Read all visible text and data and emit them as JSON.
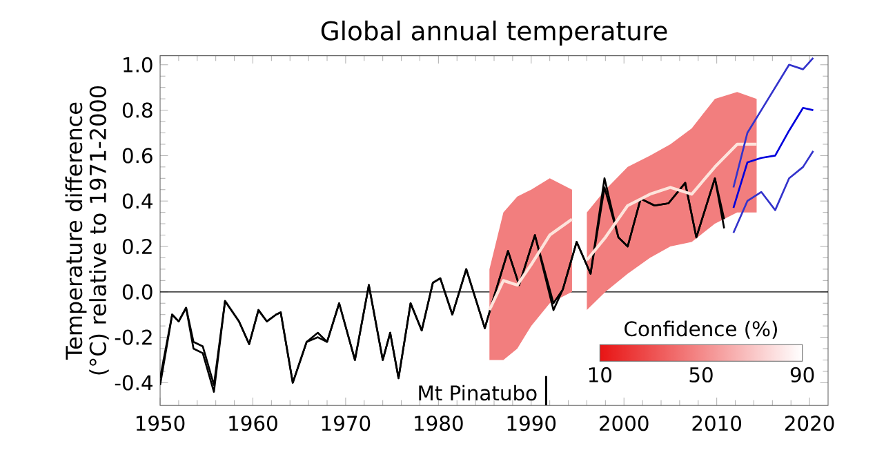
{
  "chart_data": {
    "type": "line",
    "title": "Global annual temperature",
    "ylabel": "Temperature difference (°C) relative to 1971-2000",
    "annotations": [
      "Confidence (%)",
      "10",
      "50",
      "90"
    ],
    "xlim": [
      1950,
      2022
    ],
    "xticks": [
      1950,
      1960,
      1970,
      1980,
      1990,
      2000,
      2010,
      2020
    ],
    "ylim": [
      -0.5,
      1.04
    ],
    "yticks": [
      {
        "value": -0.4,
        "label": "-0.4"
      },
      {
        "value": -0.2,
        "label": "-0.2"
      },
      {
        "value": 0,
        "label": "0.0"
      },
      {
        "value": 0.2,
        "label": "0.2"
      },
      {
        "value": 0.4,
        "label": "0.4"
      },
      {
        "value": 0.6,
        "label": "0.6"
      },
      {
        "value": 0.8,
        "label": "0.8"
      },
      {
        "value": 1.0,
        "label": "1.0"
      }
    ],
    "grid": false,
    "ref_lines": [
      {
        "axis": "y",
        "value": 0,
        "color": "#000000"
      },
      {
        "axis": "x",
        "value": 1991.6,
        "label": "Mt Pinatubo",
        "color": "#000000"
      }
    ],
    "series": [
      {
        "color": "#000000",
        "x": [
          1950,
          1951.3,
          1952,
          1952.8,
          1953.6,
          1954.6,
          1955.8,
          1957,
          1958.5,
          1959.6,
          1960.6,
          1961.5,
          1962.5,
          1963,
          1964.3,
          1965.8,
          1967,
          1968,
          1969.3,
          1971,
          1972.5,
          1974,
          1974.8,
          1975.7,
          1977,
          1978.2,
          1979.4,
          1980.2,
          1981.5,
          1983,
          1985,
          1986,
          1987.5,
          1988.7,
          1990.4,
          1992.4,
          1993.4,
          1994.9,
          1996.4,
          1997.9,
          1999.4,
          2000.4,
          2001.8,
          2003.3,
          2004.8,
          2006.6,
          2007.8,
          2009.8,
          2010.8
        ],
        "values": [
          -0.41,
          -0.1,
          -0.13,
          -0.07,
          -0.25,
          -0.27,
          -0.44,
          -0.04,
          -0.13,
          -0.23,
          -0.08,
          -0.13,
          -0.1,
          -0.09,
          -0.4,
          -0.22,
          -0.2,
          -0.22,
          -0.05,
          -0.3,
          0.03,
          -0.3,
          -0.18,
          -0.38,
          -0.05,
          -0.17,
          0.04,
          0.06,
          -0.1,
          0.1,
          -0.16,
          -0.02,
          0.18,
          0.03,
          0.25,
          -0.05,
          0.01,
          0.22,
          0.08,
          0.5,
          0.24,
          0.2,
          0.41,
          0.38,
          0.39,
          0.48,
          0.24,
          0.5,
          0.32
        ]
      },
      {
        "color": "#000000",
        "x": [
          1950,
          1951.3,
          1952,
          1952.8,
          1953.6,
          1954.6,
          1955.8,
          1957,
          1958.5,
          1959.6,
          1960.6,
          1961.5,
          1962.5,
          1963,
          1964.3,
          1965.8,
          1967,
          1968,
          1969.3,
          1971,
          1972.5,
          1974,
          1974.8,
          1975.7,
          1977,
          1978.2,
          1979.4,
          1980.2,
          1981.5,
          1983,
          1985,
          1986,
          1987.5,
          1988.7,
          1990.4,
          1992.4,
          1993.4,
          1994.9,
          1996.4,
          1997.9,
          1999.4,
          2000.4,
          2001.8,
          2003.3,
          2004.8,
          2006.6,
          2007.8,
          2009.8,
          2010.8
        ],
        "values": [
          -0.38,
          -0.1,
          -0.13,
          -0.07,
          -0.22,
          -0.24,
          -0.41,
          -0.04,
          -0.13,
          -0.23,
          -0.08,
          -0.13,
          -0.1,
          -0.09,
          -0.4,
          -0.22,
          -0.18,
          -0.22,
          -0.05,
          -0.3,
          0.03,
          -0.3,
          -0.18,
          -0.38,
          -0.05,
          -0.17,
          0.04,
          0.06,
          -0.1,
          0.1,
          -0.16,
          -0.02,
          0.18,
          0.03,
          0.25,
          -0.08,
          0.01,
          0.22,
          0.08,
          0.46,
          0.24,
          0.2,
          0.41,
          0.38,
          0.39,
          0.48,
          0.24,
          0.5,
          0.28
        ]
      },
      {
        "color": "#fde4dc",
        "x": [
          1985.5,
          1987,
          1988.5,
          1990,
          1992,
          1994.4,
          1995,
          1996,
          1998,
          2000.4,
          2002.8,
          2005,
          2007.3,
          2009.8,
          2012.2,
          2014.3
        ],
        "values": [
          -0.08,
          0.05,
          0.03,
          0.12,
          0.25,
          0.32,
          null,
          0.14,
          0.24,
          0.38,
          0.43,
          0.46,
          0.43,
          0.55,
          0.65,
          0.65
        ],
        "lower": [
          -0.3,
          -0.3,
          -0.25,
          -0.15,
          -0.05,
          0.0,
          null,
          -0.08,
          0.0,
          0.08,
          0.15,
          0.2,
          0.22,
          0.3,
          0.35,
          0.35
        ],
        "upper": [
          0.1,
          0.35,
          0.42,
          0.45,
          0.5,
          0.45,
          null,
          0.35,
          0.45,
          0.55,
          0.6,
          0.65,
          0.72,
          0.85,
          0.88,
          0.85
        ]
      },
      {
        "color": "#0000dd",
        "x": [
          2011.8,
          2013.3,
          2014.8,
          2016.3,
          2017.8,
          2019.3,
          2020.4
        ],
        "values": [
          0.37,
          0.57,
          0.59,
          0.6,
          0.71,
          0.81,
          0.8
        ]
      },
      {
        "color": "#3333cc",
        "x": [
          2011.8,
          2013.3,
          2014.8,
          2016.3,
          2017.8,
          2019.3,
          2020.4
        ],
        "values": [
          0.46,
          0.7,
          0.8,
          0.9,
          1.0,
          0.98,
          1.03
        ]
      },
      {
        "color": "#3333cc",
        "x": [
          2011.8,
          2013.3,
          2014.8,
          2016.3,
          2017.8,
          2019.3,
          2020.4
        ],
        "values": [
          0.26,
          0.4,
          0.44,
          0.36,
          0.5,
          0.55,
          0.62
        ]
      }
    ]
  }
}
